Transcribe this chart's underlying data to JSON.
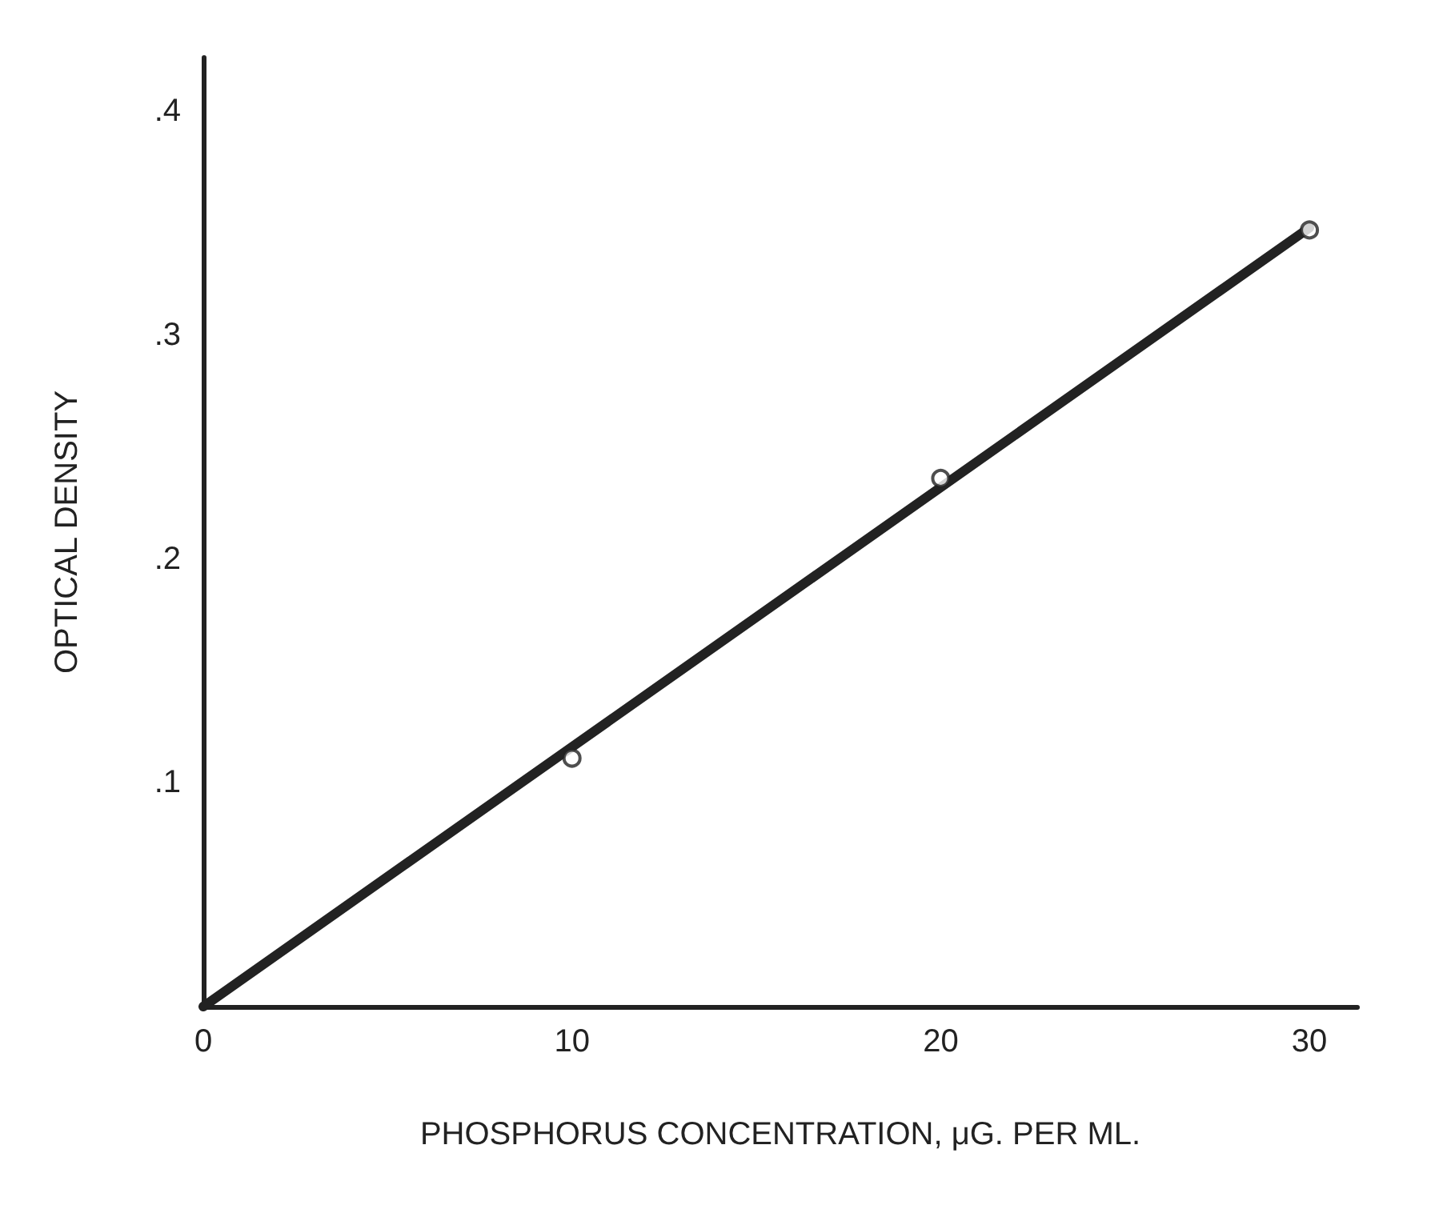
{
  "chart_data": {
    "type": "scatter",
    "xlabel": "PHOSPHORUS CONCENTRATION, μG. PER ML.",
    "ylabel": "OPTICAL DENSITY",
    "xlim": [
      0,
      31.3
    ],
    "xticks": [
      0,
      10,
      20,
      30
    ],
    "ylim": [
      0,
      0.424
    ],
    "yticks": [
      {
        "value": 0.1,
        "label": ".1"
      },
      {
        "value": 0.2,
        "label": ".2"
      },
      {
        "value": 0.3,
        "label": ".3"
      },
      {
        "value": 0.4,
        "label": ".4"
      }
    ],
    "grid": false,
    "marker": "circle",
    "series": [
      {
        "type": "line",
        "color": "#222222",
        "x": [
          0,
          30
        ],
        "values": [
          0,
          0.348
        ],
        "marker": "none",
        "line_style": "solid"
      },
      {
        "color": "#222222",
        "x": [
          10,
          20,
          30
        ],
        "values": [
          0.111,
          0.236,
          0.347
        ]
      }
    ]
  }
}
